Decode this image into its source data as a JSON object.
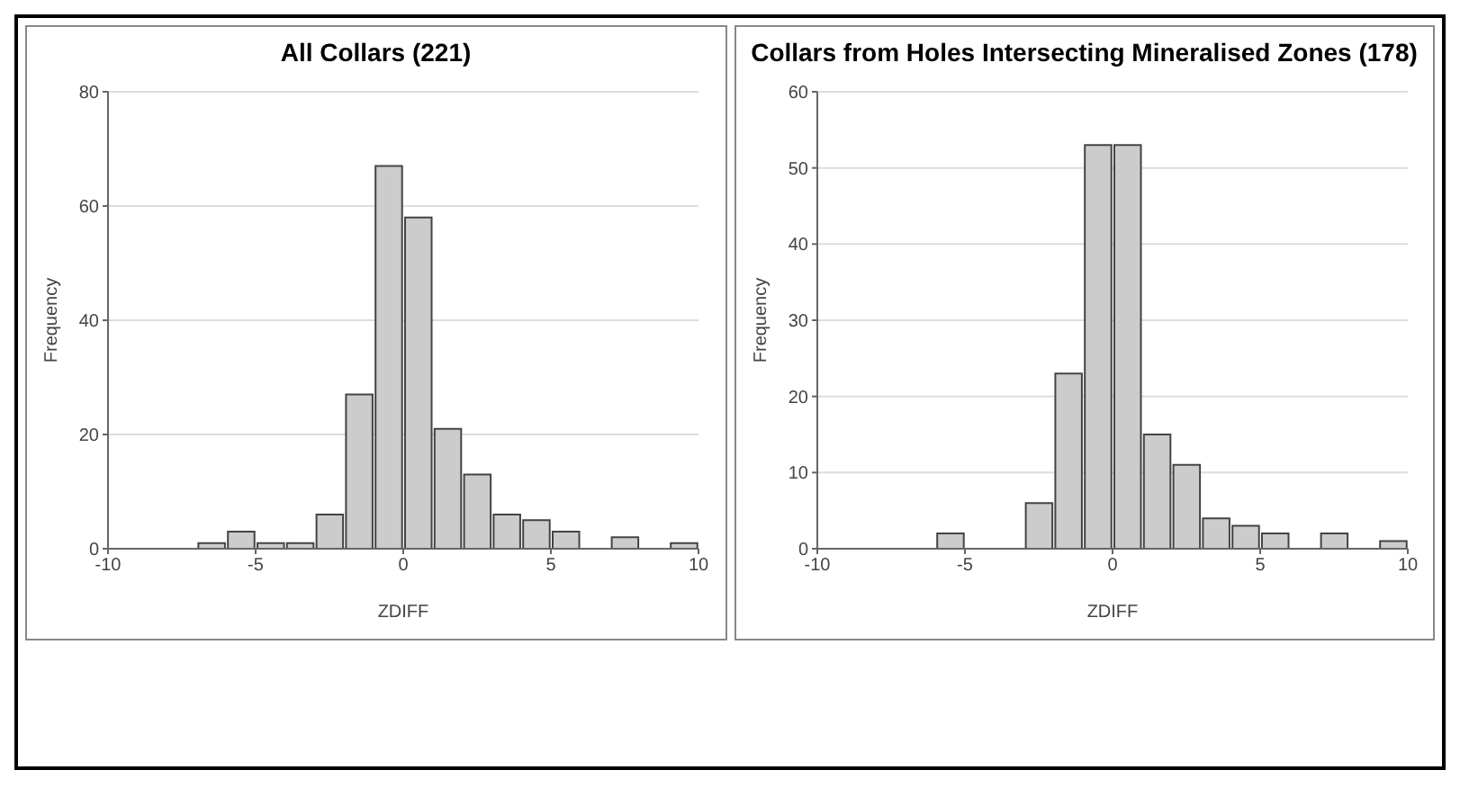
{
  "chart_data": [
    {
      "type": "histogram",
      "title": "All Collars (221)",
      "xlabel": "ZDIFF",
      "ylabel": "Frequency",
      "color": "#cccccc",
      "grid": "y",
      "bins": [
        -10,
        -9,
        -8,
        -7,
        -6,
        -5,
        -4,
        -3,
        -2,
        -1,
        0,
        1,
        2,
        3,
        4,
        5,
        6,
        7,
        8,
        9,
        10
      ],
      "values": [
        0,
        0,
        0,
        1,
        3,
        1,
        1,
        6,
        27,
        67,
        58,
        21,
        13,
        6,
        5,
        3,
        0,
        2,
        0,
        1
      ],
      "xlim": [
        -10,
        10
      ],
      "xticks": [
        -10,
        -5,
        0,
        5,
        10
      ],
      "ylim": [
        0,
        80
      ],
      "yticks": [
        0,
        20,
        40,
        60,
        80
      ]
    },
    {
      "type": "histogram",
      "title": "Collars from Holes Intersecting Mineralised Zones (178)",
      "xlabel": "ZDIFF",
      "ylabel": "Frequency",
      "color": "#cccccc",
      "grid": "y",
      "bins": [
        -10,
        -9,
        -8,
        -7,
        -6,
        -5,
        -4,
        -3,
        -2,
        -1,
        0,
        1,
        2,
        3,
        4,
        5,
        6,
        7,
        8,
        9,
        10
      ],
      "values": [
        0,
        0,
        0,
        0,
        2,
        0,
        0,
        6,
        23,
        53,
        53,
        15,
        11,
        4,
        3,
        2,
        0,
        2,
        0,
        1
      ],
      "xlim": [
        -10,
        10
      ],
      "xticks": [
        -10,
        -5,
        0,
        5,
        10
      ],
      "ylim": [
        0,
        60
      ],
      "yticks": [
        0,
        10,
        20,
        30,
        40,
        50,
        60
      ]
    }
  ]
}
